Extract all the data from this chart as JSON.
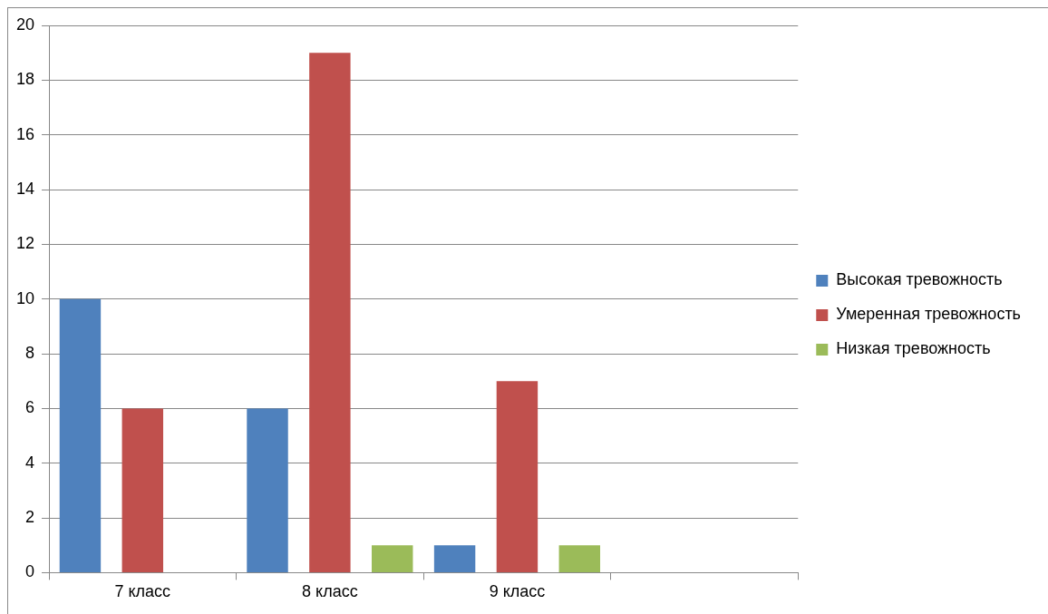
{
  "chart_data": {
    "type": "bar",
    "categories": [
      "7 класс",
      "8 класс",
      "9 класс",
      null
    ],
    "series": [
      {
        "name": "Высокая тревожность",
        "color": "#4f81bd",
        "values": [
          10,
          6,
          1,
          null
        ]
      },
      {
        "name": "Умеренная тревожность",
        "color": "#c0504d",
        "values": [
          6,
          19,
          7,
          null
        ]
      },
      {
        "name": "Низкая тревожность",
        "color": "#9bbb59",
        "values": [
          0,
          1,
          1,
          null
        ]
      }
    ],
    "ylim": [
      0,
      20
    ],
    "yticks": [
      0,
      2,
      4,
      6,
      8,
      10,
      12,
      14,
      16,
      18,
      20
    ],
    "grid": "y",
    "legend": "right"
  }
}
